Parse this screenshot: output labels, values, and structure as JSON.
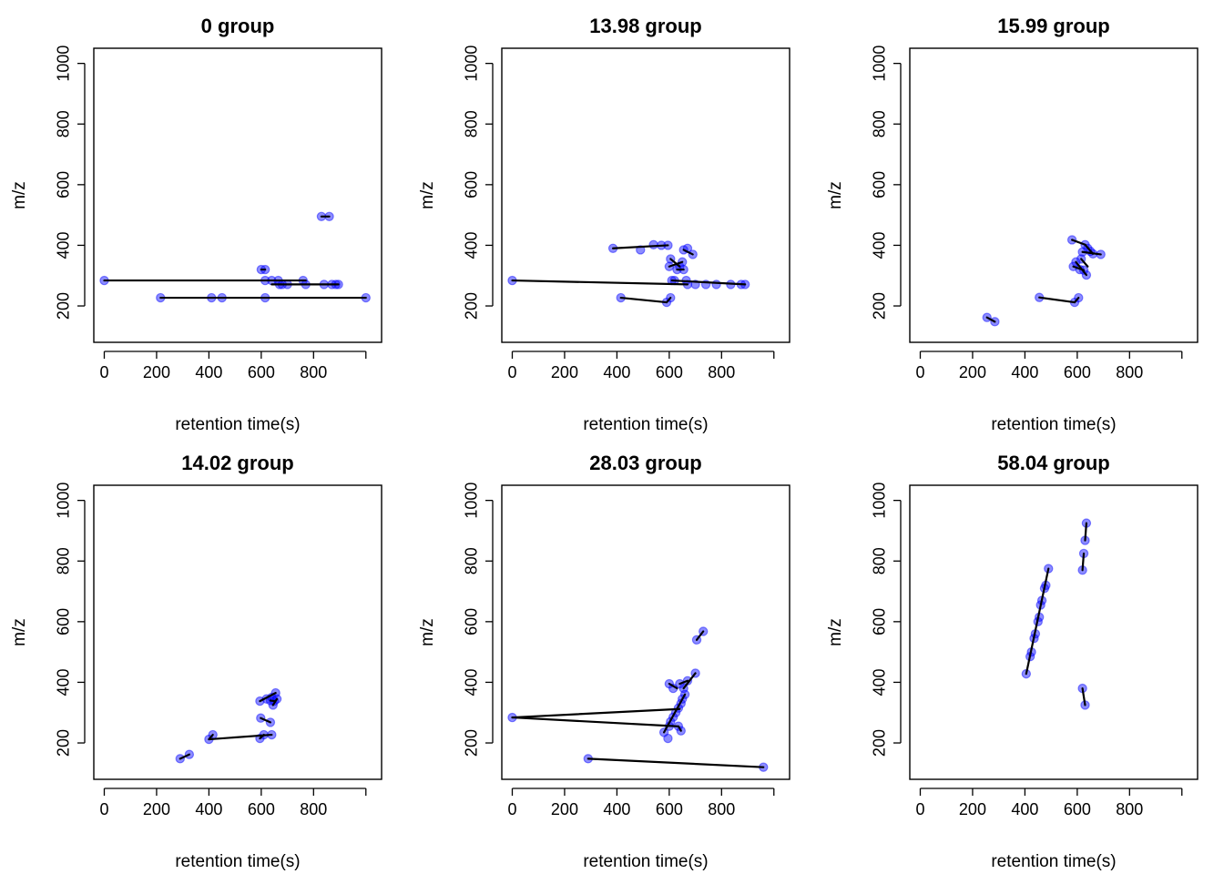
{
  "figure": {
    "colors": {
      "point_fill": "#0000ff",
      "point_alpha": 0.45,
      "segment": "#000000",
      "frame": "#000000"
    }
  },
  "chart_data": [
    {
      "type": "scatter",
      "title": "0 group",
      "xlabel": "retention time(s)",
      "ylabel": "m/z",
      "xlim": [
        -40,
        1060
      ],
      "ylim": [
        80,
        1050
      ],
      "xticks": [
        0,
        200,
        400,
        600,
        800,
        1000
      ],
      "xtick_labels": [
        "0",
        "200",
        "400",
        "600",
        "800",
        ""
      ],
      "yticks": [
        200,
        400,
        600,
        800,
        1000
      ],
      "ytick_labels": [
        "200",
        "400",
        "600",
        "800",
        "1000"
      ],
      "points": [
        [
          0,
          284
        ],
        [
          215,
          227
        ],
        [
          410,
          227
        ],
        [
          450,
          227
        ],
        [
          600,
          320
        ],
        [
          615,
          320
        ],
        [
          615,
          227
        ],
        [
          615,
          284
        ],
        [
          640,
          284
        ],
        [
          665,
          284
        ],
        [
          670,
          271
        ],
        [
          680,
          271
        ],
        [
          700,
          271
        ],
        [
          760,
          284
        ],
        [
          770,
          271
        ],
        [
          840,
          271
        ],
        [
          870,
          271
        ],
        [
          885,
          271
        ],
        [
          895,
          271
        ],
        [
          1000,
          227
        ],
        [
          830,
          495
        ],
        [
          860,
          495
        ]
      ],
      "segments": [
        [
          [
            0,
            284
          ],
          [
            770,
            284
          ]
        ],
        [
          [
            215,
            227
          ],
          [
            1000,
            227
          ]
        ],
        [
          [
            640,
            271
          ],
          [
            895,
            271
          ]
        ],
        [
          [
            830,
            495
          ],
          [
            860,
            495
          ]
        ],
        [
          [
            600,
            320
          ],
          [
            615,
            320
          ]
        ]
      ]
    },
    {
      "type": "scatter",
      "title": "13.98 group",
      "xlabel": "retention time(s)",
      "ylabel": "m/z",
      "xlim": [
        -40,
        1060
      ],
      "ylim": [
        80,
        1050
      ],
      "xticks": [
        0,
        200,
        400,
        600,
        800,
        1000
      ],
      "xtick_labels": [
        "0",
        "200",
        "400",
        "600",
        "800",
        ""
      ],
      "yticks": [
        200,
        400,
        600,
        800,
        1000
      ],
      "ytick_labels": [
        "200",
        "400",
        "600",
        "800",
        "1000"
      ],
      "points": [
        [
          0,
          284
        ],
        [
          385,
          390
        ],
        [
          490,
          385
        ],
        [
          540,
          402
        ],
        [
          570,
          400
        ],
        [
          595,
          400
        ],
        [
          605,
          355
        ],
        [
          600,
          330
        ],
        [
          640,
          330
        ],
        [
          650,
          345
        ],
        [
          655,
          385
        ],
        [
          670,
          390
        ],
        [
          690,
          370
        ],
        [
          630,
          320
        ],
        [
          655,
          320
        ],
        [
          610,
          284
        ],
        [
          620,
          284
        ],
        [
          665,
          284
        ],
        [
          670,
          271
        ],
        [
          700,
          271
        ],
        [
          740,
          271
        ],
        [
          780,
          271
        ],
        [
          835,
          271
        ],
        [
          875,
          271
        ],
        [
          890,
          271
        ],
        [
          415,
          227
        ],
        [
          590,
          212
        ],
        [
          605,
          227
        ]
      ],
      "segments": [
        [
          [
            0,
            284
          ],
          [
            670,
            271
          ]
        ],
        [
          [
            610,
            284
          ],
          [
            890,
            271
          ]
        ],
        [
          [
            385,
            390
          ],
          [
            595,
            400
          ]
        ],
        [
          [
            600,
            330
          ],
          [
            650,
            345
          ]
        ],
        [
          [
            605,
            355
          ],
          [
            640,
            330
          ]
        ],
        [
          [
            630,
            320
          ],
          [
            655,
            320
          ]
        ],
        [
          [
            415,
            227
          ],
          [
            590,
            212
          ]
        ],
        [
          [
            590,
            212
          ],
          [
            605,
            227
          ]
        ],
        [
          [
            655,
            385
          ],
          [
            690,
            370
          ]
        ]
      ]
    },
    {
      "type": "scatter",
      "title": "15.99 group",
      "xlabel": "retention time(s)",
      "ylabel": "m/z",
      "xlim": [
        -40,
        1060
      ],
      "ylim": [
        80,
        1050
      ],
      "xticks": [
        0,
        200,
        400,
        600,
        800,
        1000
      ],
      "xtick_labels": [
        "0",
        "200",
        "400",
        "600",
        "800",
        ""
      ],
      "yticks": [
        200,
        400,
        600,
        800,
        1000
      ],
      "ytick_labels": [
        "200",
        "400",
        "600",
        "800",
        "1000"
      ],
      "points": [
        [
          255,
          162
        ],
        [
          285,
          148
        ],
        [
          455,
          228
        ],
        [
          590,
          212
        ],
        [
          605,
          227
        ],
        [
          580,
          418
        ],
        [
          630,
          402
        ],
        [
          640,
          390
        ],
        [
          650,
          380
        ],
        [
          660,
          372
        ],
        [
          690,
          370
        ],
        [
          620,
          378
        ],
        [
          595,
          345
        ],
        [
          585,
          330
        ],
        [
          610,
          320
        ],
        [
          625,
          318
        ],
        [
          635,
          302
        ],
        [
          615,
          355
        ]
      ],
      "segments": [
        [
          [
            255,
            162
          ],
          [
            285,
            148
          ]
        ],
        [
          [
            455,
            228
          ],
          [
            590,
            212
          ]
        ],
        [
          [
            590,
            212
          ],
          [
            605,
            227
          ]
        ],
        [
          [
            580,
            418
          ],
          [
            630,
            402
          ]
        ],
        [
          [
            630,
            402
          ],
          [
            660,
            372
          ]
        ],
        [
          [
            620,
            378
          ],
          [
            690,
            370
          ]
        ],
        [
          [
            595,
            345
          ],
          [
            635,
            302
          ]
        ],
        [
          [
            585,
            330
          ],
          [
            625,
            318
          ]
        ],
        [
          [
            615,
            355
          ],
          [
            640,
            330
          ]
        ]
      ]
    },
    {
      "type": "scatter",
      "title": "14.02 group",
      "xlabel": "retention time(s)",
      "ylabel": "m/z",
      "xlim": [
        -40,
        1060
      ],
      "ylim": [
        80,
        1050
      ],
      "xticks": [
        0,
        200,
        400,
        600,
        800,
        1000
      ],
      "xtick_labels": [
        "0",
        "200",
        "400",
        "600",
        "800",
        ""
      ],
      "yticks": [
        200,
        400,
        600,
        800,
        1000
      ],
      "ytick_labels": [
        "200",
        "400",
        "600",
        "800",
        "1000"
      ],
      "points": [
        [
          290,
          148
        ],
        [
          325,
          162
        ],
        [
          400,
          212
        ],
        [
          415,
          227
        ],
        [
          595,
          215
        ],
        [
          610,
          227
        ],
        [
          640,
          227
        ],
        [
          598,
          282
        ],
        [
          635,
          268
        ],
        [
          595,
          338
        ],
        [
          620,
          345
        ],
        [
          640,
          350
        ],
        [
          655,
          365
        ],
        [
          650,
          338
        ],
        [
          660,
          345
        ],
        [
          645,
          325
        ],
        [
          635,
          340
        ]
      ],
      "segments": [
        [
          [
            290,
            148
          ],
          [
            325,
            162
          ]
        ],
        [
          [
            400,
            212
          ],
          [
            640,
            227
          ]
        ],
        [
          [
            400,
            212
          ],
          [
            415,
            227
          ]
        ],
        [
          [
            595,
            215
          ],
          [
            610,
            227
          ]
        ],
        [
          [
            598,
            282
          ],
          [
            635,
            268
          ]
        ],
        [
          [
            595,
            338
          ],
          [
            655,
            365
          ]
        ],
        [
          [
            645,
            325
          ],
          [
            660,
            345
          ]
        ],
        [
          [
            635,
            340
          ],
          [
            650,
            338
          ]
        ]
      ]
    },
    {
      "type": "scatter",
      "title": "28.03 group",
      "xlabel": "retention time(s)",
      "ylabel": "m/z",
      "xlim": [
        -40,
        1060
      ],
      "ylim": [
        80,
        1050
      ],
      "xticks": [
        0,
        200,
        400,
        600,
        800,
        1000
      ],
      "xtick_labels": [
        "0",
        "200",
        "400",
        "600",
        "800",
        ""
      ],
      "yticks": [
        200,
        400,
        600,
        800,
        1000
      ],
      "ytick_labels": [
        "200",
        "400",
        "600",
        "800",
        "1000"
      ],
      "points": [
        [
          0,
          284
        ],
        [
          290,
          148
        ],
        [
          960,
          120
        ],
        [
          580,
          235
        ],
        [
          595,
          215
        ],
        [
          600,
          255
        ],
        [
          605,
          270
        ],
        [
          615,
          285
        ],
        [
          625,
          300
        ],
        [
          635,
          315
        ],
        [
          645,
          330
        ],
        [
          650,
          345
        ],
        [
          660,
          360
        ],
        [
          655,
          380
        ],
        [
          640,
          395
        ],
        [
          600,
          395
        ],
        [
          615,
          380
        ],
        [
          670,
          405
        ],
        [
          700,
          430
        ],
        [
          705,
          540
        ],
        [
          730,
          568
        ],
        [
          635,
          255
        ],
        [
          645,
          240
        ]
      ],
      "segments": [
        [
          [
            0,
            284
          ],
          [
            640,
            312
          ]
        ],
        [
          [
            0,
            284
          ],
          [
            630,
            255
          ]
        ],
        [
          [
            290,
            148
          ],
          [
            960,
            120
          ]
        ],
        [
          [
            580,
            235
          ],
          [
            660,
            360
          ]
        ],
        [
          [
            600,
            395
          ],
          [
            630,
            380
          ]
        ],
        [
          [
            655,
            380
          ],
          [
            700,
            430
          ]
        ],
        [
          [
            640,
            395
          ],
          [
            670,
            405
          ]
        ],
        [
          [
            705,
            540
          ],
          [
            730,
            568
          ]
        ],
        [
          [
            635,
            255
          ],
          [
            645,
            240
          ]
        ]
      ]
    },
    {
      "type": "scatter",
      "title": "58.04 group",
      "xlabel": "retention time(s)",
      "ylabel": "m/z",
      "xlim": [
        -40,
        1060
      ],
      "ylim": [
        80,
        1050
      ],
      "xticks": [
        0,
        200,
        400,
        600,
        800,
        1000
      ],
      "xtick_labels": [
        "0",
        "200",
        "400",
        "600",
        "800",
        ""
      ],
      "yticks": [
        200,
        400,
        600,
        800,
        1000
      ],
      "ytick_labels": [
        "200",
        "400",
        "600",
        "800",
        "1000"
      ],
      "points": [
        [
          405,
          428
        ],
        [
          420,
          485
        ],
        [
          425,
          500
        ],
        [
          435,
          545
        ],
        [
          440,
          560
        ],
        [
          450,
          600
        ],
        [
          455,
          615
        ],
        [
          460,
          655
        ],
        [
          465,
          670
        ],
        [
          475,
          710
        ],
        [
          480,
          720
        ],
        [
          490,
          775
        ],
        [
          620,
          770
        ],
        [
          625,
          825
        ],
        [
          630,
          868
        ],
        [
          635,
          925
        ],
        [
          620,
          380
        ],
        [
          630,
          325
        ]
      ],
      "segments": [
        [
          [
            405,
            428
          ],
          [
            490,
            775
          ]
        ],
        [
          [
            620,
            770
          ],
          [
            625,
            825
          ]
        ],
        [
          [
            630,
            868
          ],
          [
            635,
            925
          ]
        ],
        [
          [
            620,
            380
          ],
          [
            630,
            325
          ]
        ]
      ]
    }
  ]
}
